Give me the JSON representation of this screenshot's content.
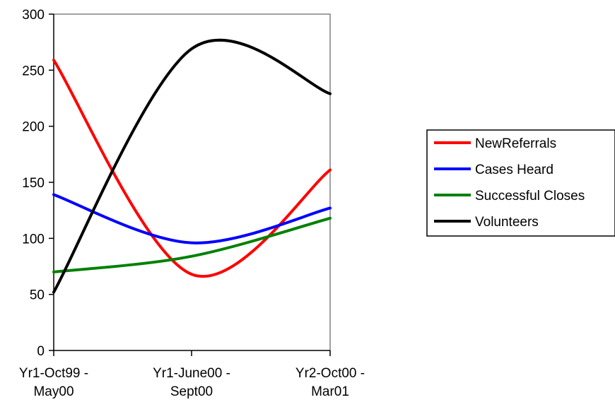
{
  "chart_data": {
    "type": "line",
    "smooth": true,
    "categories": [
      [
        "Yr1-Oct99 -",
        "May00"
      ],
      [
        "Yr1-June00 -",
        "Sept00"
      ],
      [
        "Yr2-Oct00 -",
        "Mar01"
      ]
    ],
    "ylim": [
      0,
      300
    ],
    "yticks": [
      0,
      50,
      100,
      150,
      200,
      250,
      300
    ],
    "grid": false,
    "legend_position": "right",
    "series": [
      {
        "name": "NewReferrals",
        "color": "#ff0000",
        "values": [
          259,
          68,
          161
        ]
      },
      {
        "name": "Cases Heard",
        "color": "#0000ff",
        "values": [
          139,
          96,
          127
        ]
      },
      {
        "name": "Successful Closes",
        "color": "#008000",
        "values": [
          70,
          84,
          118
        ]
      },
      {
        "name": "Volunteers",
        "color": "#000000",
        "values": [
          52,
          269,
          229
        ]
      }
    ]
  }
}
